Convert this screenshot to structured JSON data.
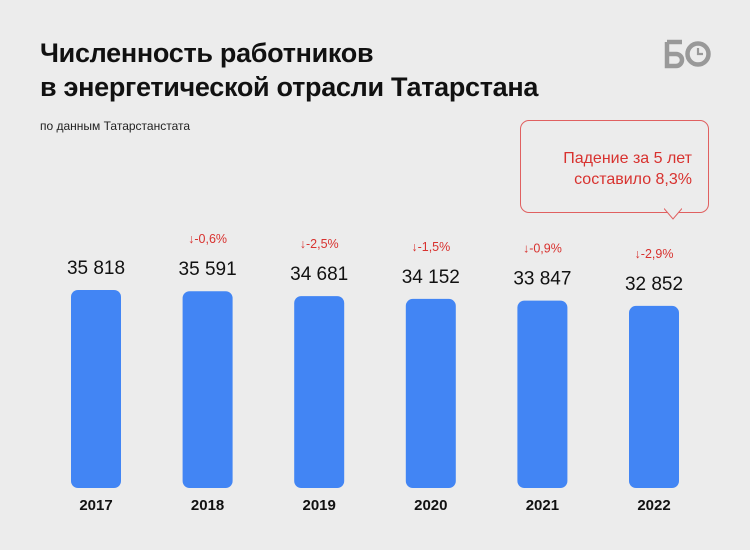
{
  "header": {
    "title_line1": "Численность работников",
    "title_line2": "в энергетической отрасли Татарстана",
    "subtitle": "по данным Татарстанстата",
    "logo": "БО"
  },
  "callout": {
    "line1": "Падение за 5 лет",
    "line2": "составило 8,3%"
  },
  "colors": {
    "bar": "#4285f4",
    "change": "#d8322f",
    "background": "#ececec"
  },
  "chart_data": {
    "type": "bar",
    "categories": [
      "2017",
      "2018",
      "2019",
      "2020",
      "2021",
      "2022"
    ],
    "values": [
      35818,
      35591,
      34681,
      34152,
      33847,
      32852
    ],
    "value_labels": [
      "35 818",
      "35 591",
      "34 681",
      "34 152",
      "33 847",
      "32 852"
    ],
    "changes": [
      "",
      "↓-0,6%",
      "↓-2,5%",
      "↓-1,5%",
      "↓-0,9%",
      "↓-2,9%"
    ],
    "title": "Численность работников в энергетической отрасли Татарстана",
    "xlabel": "",
    "ylabel": "",
    "grid": false,
    "legend": "none"
  }
}
